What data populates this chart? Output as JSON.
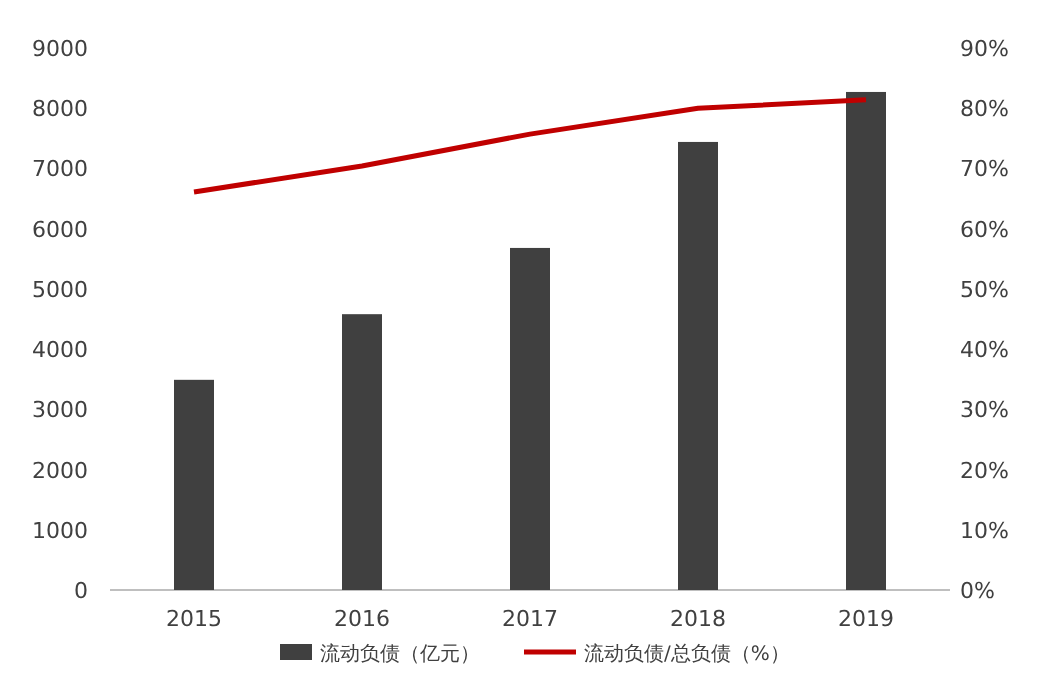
{
  "chart_data": {
    "type": "bar",
    "categories": [
      "2015",
      "2016",
      "2017",
      "2018",
      "2019"
    ],
    "series": [
      {
        "name": "流动负债（亿元）",
        "color": "#404040",
        "values": [
          3490,
          4580,
          5680,
          7440,
          8270
        ]
      },
      {
        "name": "流动负债/总负债（%）",
        "type": "line",
        "axis": "y2",
        "color": "#c00000",
        "values": [
          66.1,
          70.4,
          75.7,
          80.0,
          81.4
        ]
      }
    ],
    "ylim": [
      0,
      9000
    ],
    "yticks": [
      0,
      1000,
      2000,
      3000,
      4000,
      5000,
      6000,
      7000,
      8000,
      9000
    ],
    "y2lim": [
      0,
      90
    ],
    "y2ticks": [
      {
        "value": 0,
        "label": "0%"
      },
      {
        "value": 10,
        "label": "10%"
      },
      {
        "value": 20,
        "label": "20%"
      },
      {
        "value": 30,
        "label": "30%"
      },
      {
        "value": 40,
        "label": "40%"
      },
      {
        "value": 50,
        "label": "50%"
      },
      {
        "value": 60,
        "label": "60%"
      },
      {
        "value": 70,
        "label": "70%"
      },
      {
        "value": 80,
        "label": "80%"
      },
      {
        "value": 90,
        "label": "90%"
      }
    ],
    "legend": "bottom",
    "grid": false,
    "marker": "none"
  }
}
